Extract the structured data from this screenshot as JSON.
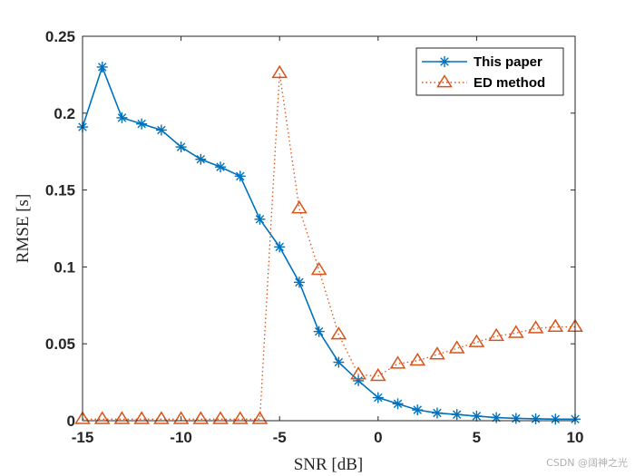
{
  "chart_data": {
    "type": "line",
    "title": "",
    "xlabel": "SNR [dB]",
    "ylabel": "RMSE [s]",
    "xlim": [
      -15,
      10
    ],
    "ylim": [
      0,
      0.25
    ],
    "xticks": [
      -15,
      -10,
      -5,
      0,
      5,
      10
    ],
    "yticks": [
      0,
      0.05,
      0.1,
      0.15,
      0.2,
      0.25
    ],
    "xtick_labels": [
      "-15",
      "-10",
      "-5",
      "0",
      "5",
      "10"
    ],
    "ytick_labels": [
      "0",
      "0.05",
      "0.1",
      "0.15",
      "0.2",
      "0.25"
    ],
    "grid": false,
    "legend_position": "top-right",
    "x": [
      -15,
      -14,
      -13,
      -12,
      -11,
      -10,
      -9,
      -8,
      -7,
      -6,
      -5,
      -4,
      -3,
      -2,
      -1,
      0,
      1,
      2,
      3,
      4,
      5,
      6,
      7,
      8,
      9,
      10
    ],
    "series": [
      {
        "name": "This paper",
        "color": "#0072BD",
        "line": "solid",
        "marker": "asterisk",
        "values": [
          0.191,
          0.23,
          0.197,
          0.193,
          0.189,
          0.178,
          0.17,
          0.165,
          0.159,
          0.131,
          0.113,
          0.09,
          0.058,
          0.038,
          0.026,
          0.015,
          0.011,
          0.007,
          0.005,
          0.004,
          0.003,
          0.002,
          0.0015,
          0.0012,
          0.001,
          0.001
        ]
      },
      {
        "name": "ED method",
        "color": "#D95319",
        "line": "dotted",
        "marker": "triangle",
        "values": [
          0.001,
          0.001,
          0.001,
          0.001,
          0.001,
          0.001,
          0.001,
          0.001,
          0.001,
          0.001,
          0.226,
          0.138,
          0.098,
          0.056,
          0.03,
          0.029,
          0.037,
          0.039,
          0.043,
          0.047,
          0.051,
          0.055,
          0.057,
          0.06,
          0.061,
          0.061
        ]
      }
    ]
  },
  "watermark": "CSDN @阔神之光"
}
